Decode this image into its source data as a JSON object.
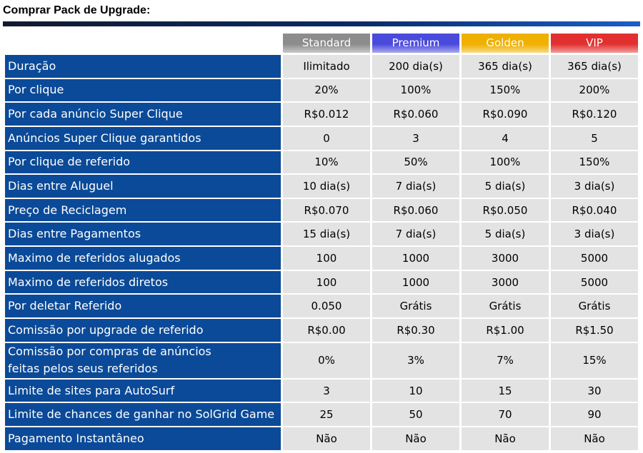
{
  "page": {
    "title": "Comprar Pack de Upgrade:"
  },
  "plans": [
    {
      "name": "Standard",
      "color": "#8c8c8c"
    },
    {
      "name": "Premium",
      "color": "#4a4adc"
    },
    {
      "name": "Golden",
      "color": "#f0b000"
    },
    {
      "name": "VIP",
      "color": "#e23030"
    }
  ],
  "rows": [
    {
      "label": "Duração",
      "values": [
        "Ilimitado",
        "200 dia(s)",
        "365 dia(s)",
        "365 dia(s)"
      ]
    },
    {
      "label": "Por clique",
      "values": [
        "20%",
        "100%",
        "150%",
        "200%"
      ]
    },
    {
      "label": "Por cada anúncio Super Clique",
      "values": [
        "R$0.012",
        "R$0.060",
        "R$0.090",
        "R$0.120"
      ]
    },
    {
      "label": "Anúncios Super Clique garantidos",
      "values": [
        "0",
        "3",
        "4",
        "5"
      ]
    },
    {
      "label": "Por clique de referido",
      "values": [
        "10%",
        "50%",
        "100%",
        "150%"
      ]
    },
    {
      "label": "Dias entre Aluguel",
      "values": [
        "10 dia(s)",
        "7 dia(s)",
        "5 dia(s)",
        "3 dia(s)"
      ]
    },
    {
      "label": "Preço de Reciclagem",
      "values": [
        "R$0.070",
        "R$0.060",
        "R$0.050",
        "R$0.040"
      ]
    },
    {
      "label": "Dias entre Pagamentos",
      "values": [
        "15 dia(s)",
        "7 dia(s)",
        "5 dia(s)",
        "3 dia(s)"
      ]
    },
    {
      "label": "Maximo de referidos alugados",
      "values": [
        "100",
        "1000",
        "3000",
        "5000"
      ]
    },
    {
      "label": "Maximo de referidos diretos",
      "values": [
        "100",
        "1000",
        "3000",
        "5000"
      ]
    },
    {
      "label": "Por deletar Referido",
      "values": [
        "0.050",
        "Grátis",
        "Grátis",
        "Grátis"
      ]
    },
    {
      "label": "Comissão por upgrade de referido",
      "values": [
        "R$0.00",
        "R$0.30",
        "R$1.00",
        "R$1.50"
      ]
    },
    {
      "label_line1": "Comissão por compras de anúncios",
      "label_line2": "feitas pelos seus referidos",
      "values": [
        "0%",
        "3%",
        "7%",
        "15%"
      ]
    },
    {
      "label": "Limite de sites para AutoSurf",
      "values": [
        "3",
        "10",
        "15",
        "30"
      ]
    },
    {
      "label": "Limite de chances de ganhar no SolGrid Game",
      "values": [
        "25",
        "50",
        "70",
        "90"
      ]
    },
    {
      "label": "Pagamento Instantâneo",
      "values": [
        "Não",
        "Não",
        "Não",
        "Não"
      ]
    }
  ]
}
